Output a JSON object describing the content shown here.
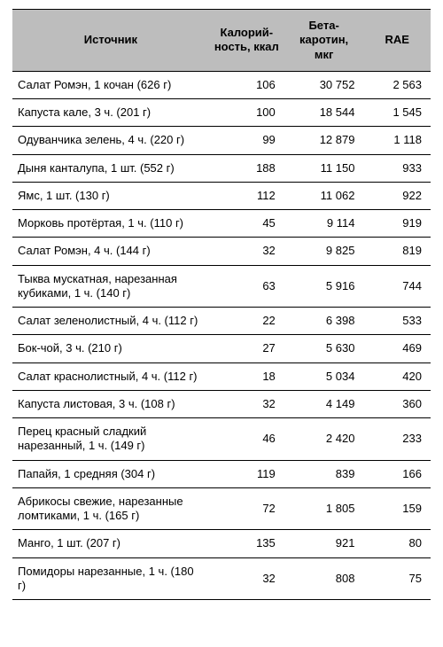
{
  "table": {
    "headers": {
      "source": "Источник",
      "kcal": "Калорий-ность, ккал",
      "beta": "Бета-каротин, мкг",
      "rae": "RAE"
    },
    "rows": [
      {
        "source": "Салат Ромэн, 1 кочан (626 г)",
        "kcal": "106",
        "beta": "30 752",
        "rae": "2 563"
      },
      {
        "source": "Капуста кале, 3 ч. (201 г)",
        "kcal": "100",
        "beta": "18 544",
        "rae": "1 545"
      },
      {
        "source": "Одуванчика зелень, 4 ч. (220 г)",
        "kcal": "99",
        "beta": "12 879",
        "rae": "1 118"
      },
      {
        "source": "Дыня канталупа, 1 шт. (552 г)",
        "kcal": "188",
        "beta": "11 150",
        "rae": "933"
      },
      {
        "source": "Ямс, 1 шт. (130 г)",
        "kcal": "112",
        "beta": "11 062",
        "rae": "922"
      },
      {
        "source": "Морковь протёртая, 1 ч. (110 г)",
        "kcal": "45",
        "beta": "9 114",
        "rae": "919"
      },
      {
        "source": "Салат Ромэн, 4 ч. (144 г)",
        "kcal": "32",
        "beta": "9 825",
        "rae": "819"
      },
      {
        "source": "Тыква мускатная, нарезанная кубиками, 1 ч. (140 г)",
        "kcal": "63",
        "beta": "5 916",
        "rae": "744"
      },
      {
        "source": "Салат зеленолистный, 4 ч. (112 г)",
        "kcal": "22",
        "beta": "6 398",
        "rae": "533"
      },
      {
        "source": "Бок-чой, 3 ч. (210 г)",
        "kcal": "27",
        "beta": "5 630",
        "rae": "469"
      },
      {
        "source": "Салат краснолистный, 4 ч. (112 г)",
        "kcal": "18",
        "beta": "5 034",
        "rae": "420"
      },
      {
        "source": "Капуста листовая, 3 ч. (108 г)",
        "kcal": "32",
        "beta": "4 149",
        "rae": "360"
      },
      {
        "source": "Перец красный сладкий нарезанный, 1 ч. (149 г)",
        "kcal": "46",
        "beta": "2 420",
        "rae": "233"
      },
      {
        "source": "Папайя, 1 средняя (304 г)",
        "kcal": "119",
        "beta": "839",
        "rae": "166"
      },
      {
        "source": "Абрикосы свежие, нарезанные ломтиками, 1 ч. (165 г)",
        "kcal": "72",
        "beta": "1 805",
        "rae": "159"
      },
      {
        "source": "Манго, 1 шт. (207 г)",
        "kcal": "135",
        "beta": "921",
        "rae": "80"
      },
      {
        "source": "Помидоры нарезанные, 1 ч. (180 г)",
        "kcal": "32",
        "beta": "808",
        "rae": "75"
      }
    ]
  }
}
